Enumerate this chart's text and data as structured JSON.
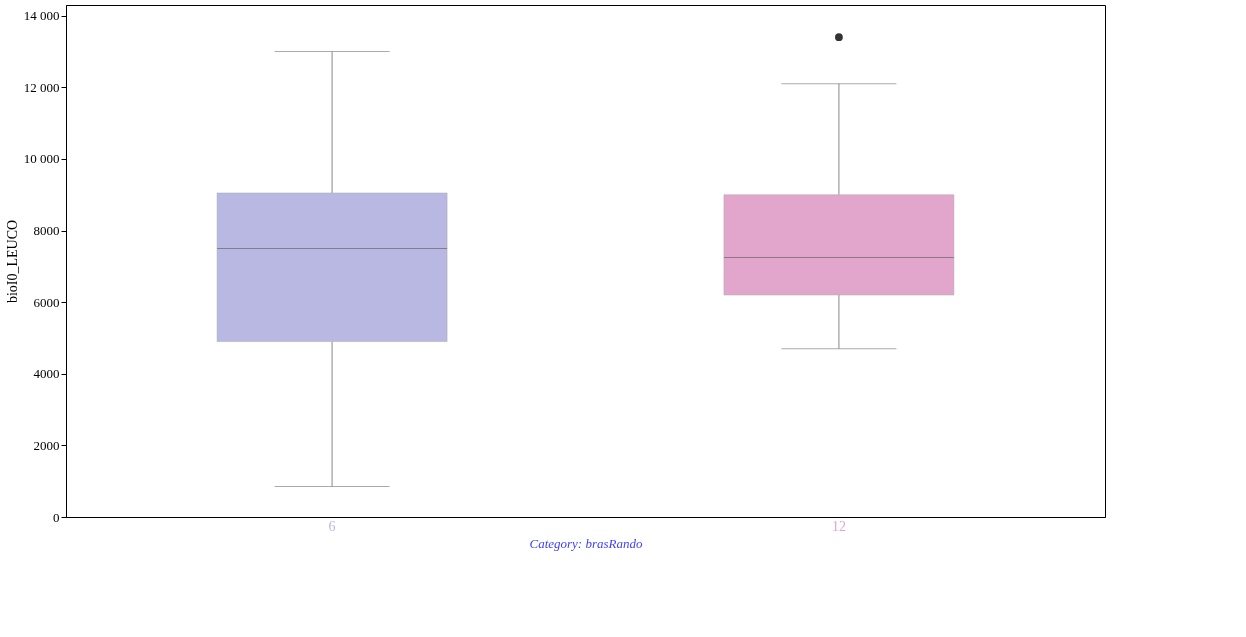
{
  "chart_data": {
    "type": "box",
    "xlabel": "Category: brasRando",
    "ylabel": "bioI0_LEUCO",
    "categories": [
      "6",
      "12"
    ],
    "boxes": [
      {
        "low": 850,
        "q1": 4900,
        "median": 7500,
        "q3": 9050,
        "high": 13000
      },
      {
        "low": 4700,
        "q1": 6200,
        "median": 7250,
        "q3": 9000,
        "high": 12100,
        "outliers": [
          13400
        ]
      }
    ],
    "colors": [
      "#b8b8e2",
      "#e2a6cc"
    ],
    "ylim": [
      0,
      14300
    ],
    "yticks": [
      0,
      2000,
      4000,
      6000,
      8000,
      {
        "value": 10000,
        "label": "10 000"
      },
      {
        "value": 12000,
        "label": "12 000"
      },
      {
        "value": 14000,
        "label": "14 000"
      }
    ],
    "grid": false,
    "legend": false
  }
}
